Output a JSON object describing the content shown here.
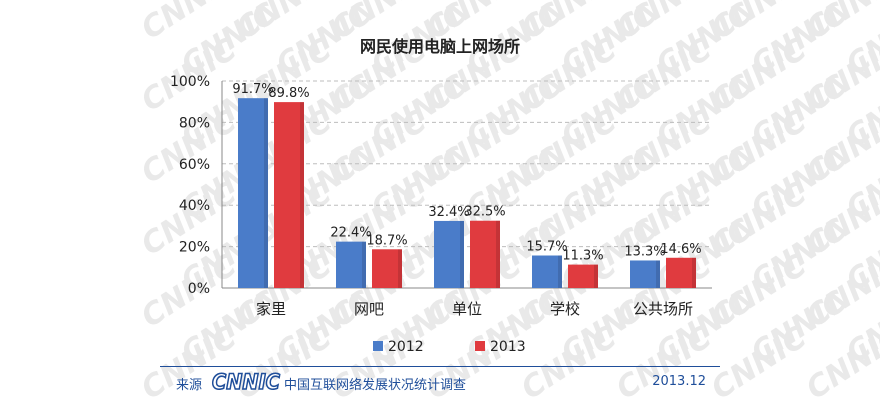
{
  "chart_data": {
    "type": "bar",
    "title": "网民使用电脑上网场所",
    "categories": [
      "家里",
      "网吧",
      "单位",
      "学校",
      "公共场所"
    ],
    "series": [
      {
        "name": "2012",
        "values": [
          91.7,
          22.4,
          32.4,
          15.7,
          13.3
        ],
        "color": "#4a7cc9",
        "labels": [
          "91.7%",
          "22.4%",
          "32.4%",
          "15.7%",
          "13.3%"
        ]
      },
      {
        "name": "2013",
        "values": [
          89.8,
          18.7,
          32.5,
          11.3,
          14.6
        ],
        "color": "#e03b3f",
        "labels": [
          "89.8%",
          "18.7%",
          "32.5%",
          "11.3%",
          "14.6%"
        ]
      }
    ],
    "ylim": [
      0,
      100
    ],
    "yticks": [
      0,
      20,
      40,
      60,
      80,
      100
    ],
    "ytick_labels": [
      "0%",
      "20%",
      "40%",
      "60%",
      "80%",
      "100%"
    ],
    "xlabel": "",
    "ylabel": "",
    "grid": true,
    "legend_position": "bottom-center"
  },
  "footer": {
    "source_label": "来源",
    "logo_text": "CNNIC",
    "report_name": "中国互联网络发展状况统计调查",
    "date": "2013.12"
  },
  "watermark": {
    "text": "CNNIC"
  }
}
